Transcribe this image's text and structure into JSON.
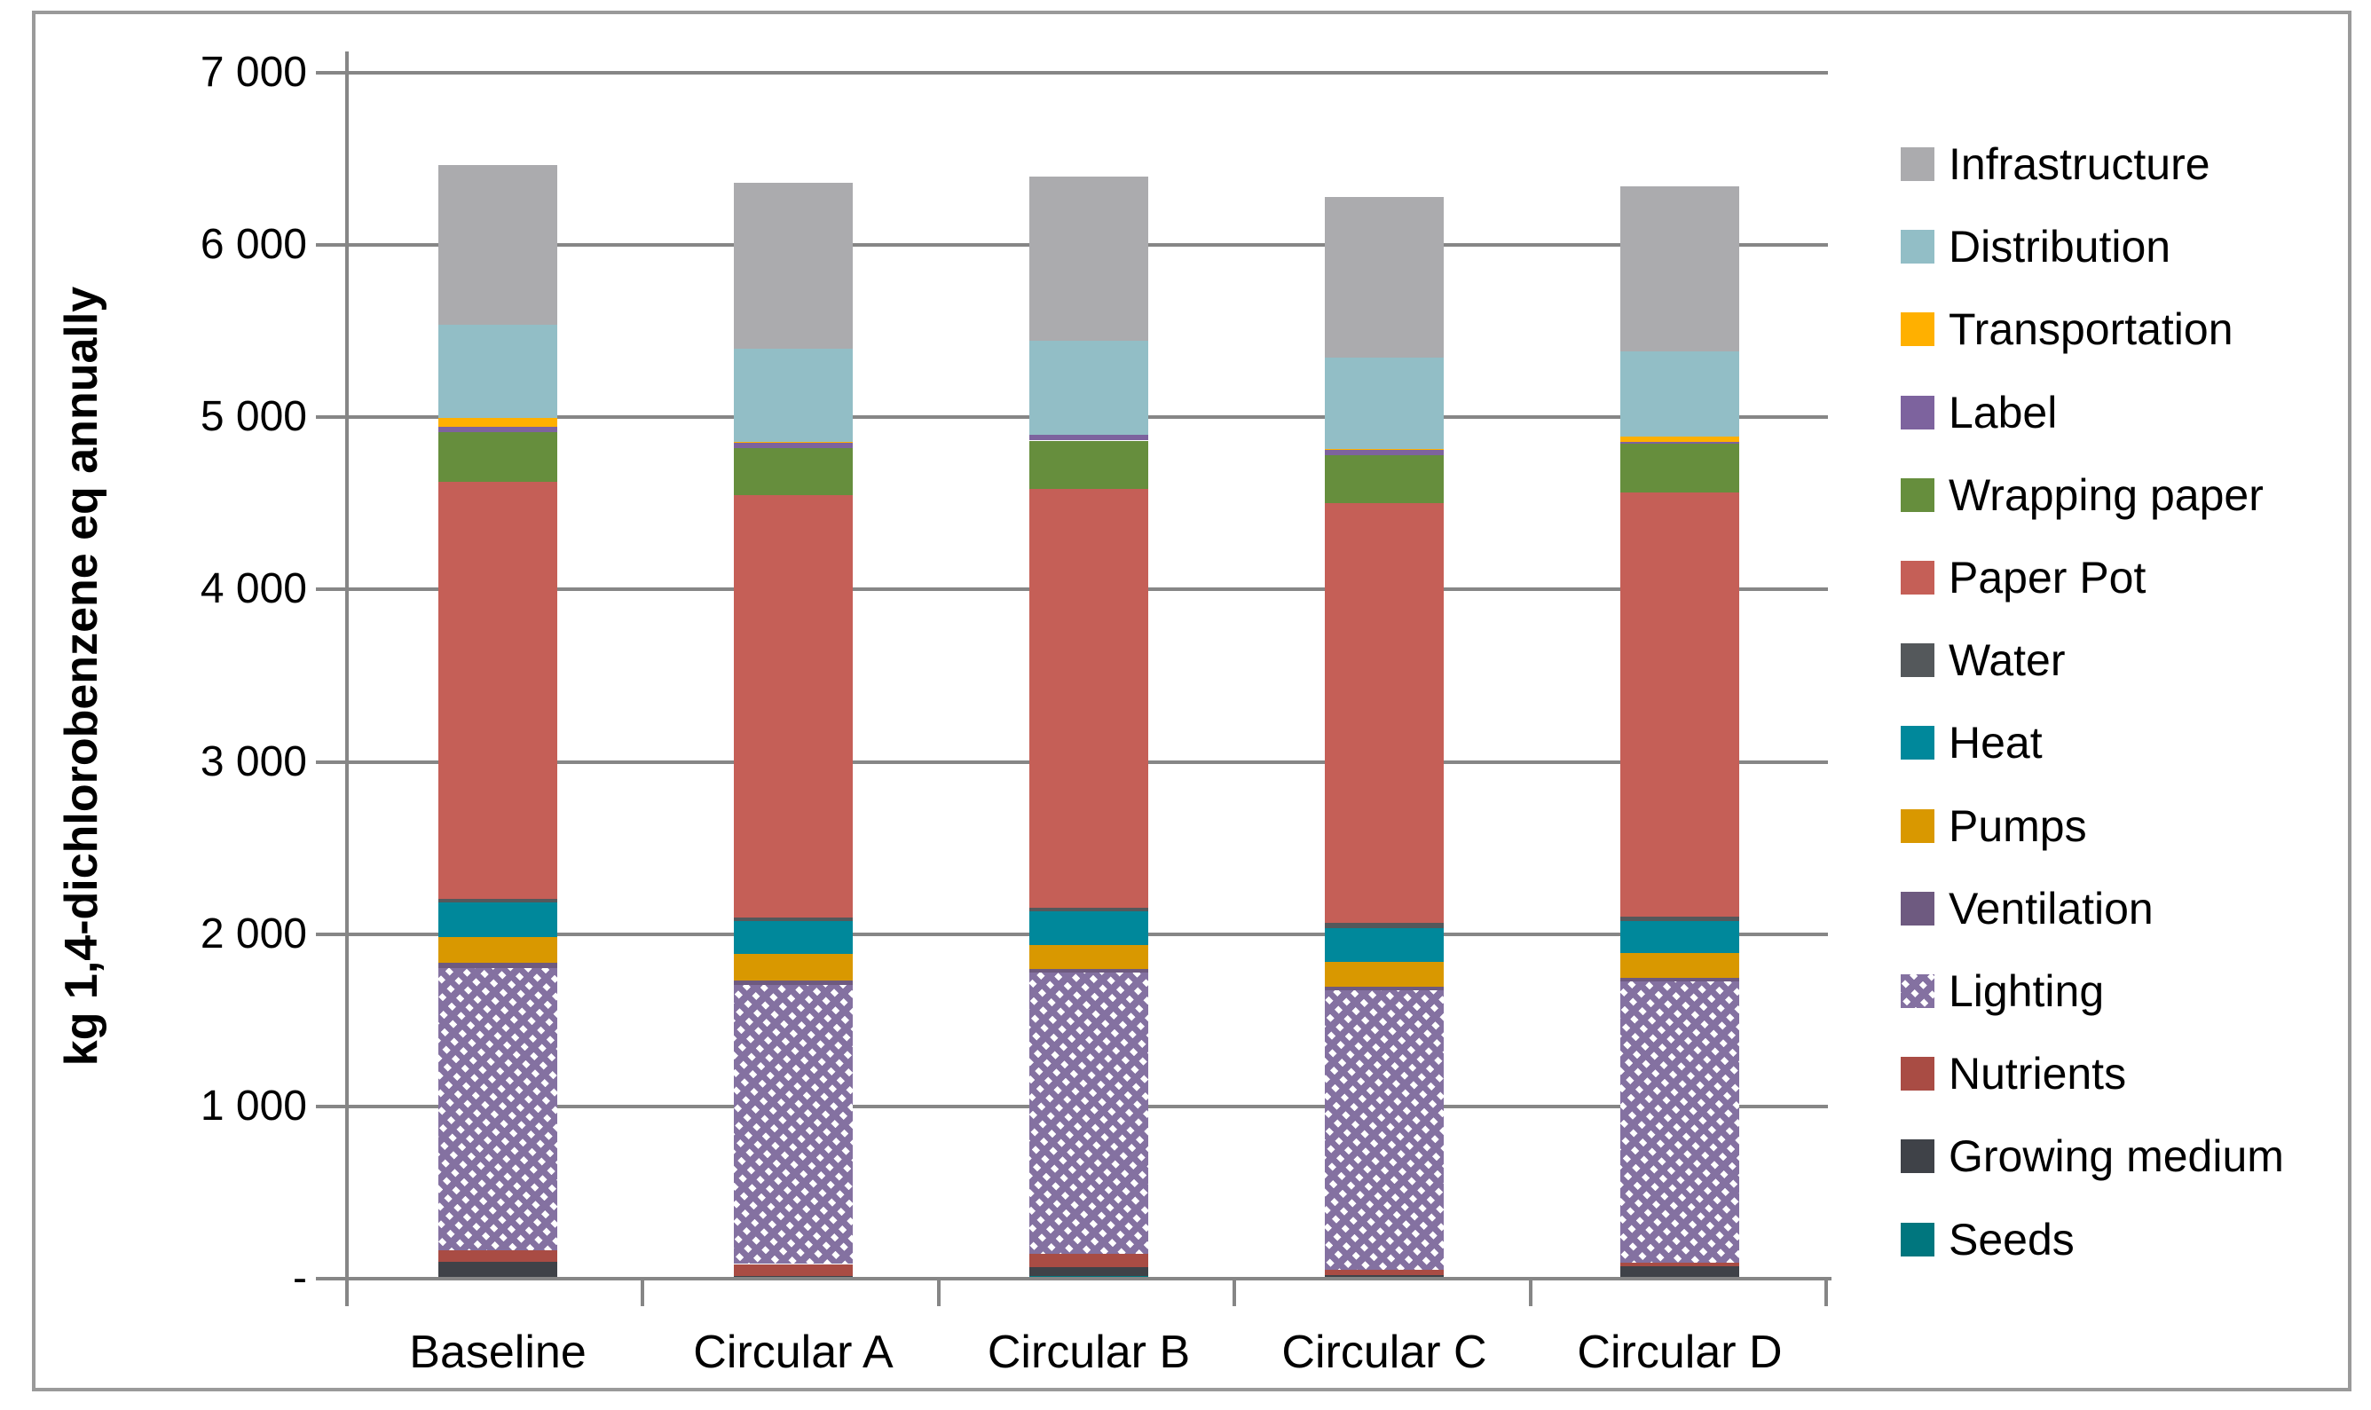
{
  "chart_data": {
    "type": "bar",
    "stacked": true,
    "orientation": "vertical",
    "ylabel": "kg 1,4-dichlorobenzene eq annually",
    "xlabel": "",
    "ylim": [
      0,
      7000
    ],
    "grid": true,
    "legend_position": "right",
    "y_tick_values": [
      7000,
      6000,
      5000,
      4000,
      3000,
      2000,
      1000,
      0
    ],
    "y_tick_labels": [
      "7 000",
      "6 000",
      "5 000",
      "4 000",
      "3 000",
      "2 000",
      "1 000",
      "-"
    ],
    "categories": [
      "Baseline",
      "Circular A",
      "Circular B",
      "Circular C",
      "Circular D"
    ],
    "series_bottom_to_top": [
      {
        "name": "Seeds",
        "color": "#00767e",
        "pattern": "solid",
        "values": [
          10,
          5,
          15,
          5,
          10
        ]
      },
      {
        "name": "Growing medium",
        "color": "#3f4248",
        "pattern": "solid",
        "values": [
          90,
          10,
          50,
          15,
          60
        ]
      },
      {
        "name": "Nutrients",
        "color": "#a94c44",
        "pattern": "solid",
        "values": [
          65,
          70,
          80,
          30,
          25
        ]
      },
      {
        "name": "Lighting",
        "color": "#8471a1",
        "pattern": "diagonal-hatch",
        "values": [
          1640,
          1620,
          1630,
          1625,
          1630
        ]
      },
      {
        "name": "Ventilation",
        "color": "#6e5a80",
        "pattern": "solid",
        "values": [
          30,
          25,
          25,
          20,
          20
        ]
      },
      {
        "name": "Pumps",
        "color": "#d99800",
        "pattern": "solid",
        "values": [
          150,
          155,
          135,
          145,
          145
        ]
      },
      {
        "name": "Heat",
        "color": "#00889b",
        "pattern": "solid",
        "values": [
          200,
          190,
          195,
          195,
          185
        ]
      },
      {
        "name": "Water",
        "color": "#54585b",
        "pattern": "solid",
        "values": [
          20,
          20,
          25,
          30,
          25
        ]
      },
      {
        "name": "Paper Pot",
        "color": "#c55f57",
        "pattern": "solid",
        "values": [
          2420,
          2455,
          2430,
          2435,
          2465
        ]
      },
      {
        "name": "Wrapping paper",
        "color": "#668e3d",
        "pattern": "solid",
        "values": [
          290,
          270,
          280,
          280,
          280
        ]
      },
      {
        "name": "Label",
        "color": "#7d639e",
        "pattern": "solid",
        "values": [
          30,
          30,
          35,
          30,
          10
        ]
      },
      {
        "name": "Transportation",
        "color": "#ffb000",
        "pattern": "solid",
        "values": [
          50,
          5,
          0,
          5,
          35
        ]
      },
      {
        "name": "Distribution",
        "color": "#92bec6",
        "pattern": "solid",
        "values": [
          540,
          545,
          545,
          530,
          495
        ]
      },
      {
        "name": "Infrastructure",
        "color": "#ababae",
        "pattern": "solid",
        "values": [
          930,
          960,
          950,
          935,
          955
        ]
      }
    ],
    "totals": [
      6465,
      6360,
      6395,
      6280,
      6340
    ],
    "legend_top_to_bottom": [
      "Infrastructure",
      "Distribution",
      "Transportation",
      "Label",
      "Wrapping paper",
      "Paper Pot",
      "Water",
      "Heat",
      "Pumps",
      "Ventilation",
      "Lighting",
      "Nutrients",
      "Growing medium",
      "Seeds"
    ],
    "colors": {
      "gridline": "#868686",
      "axis": "#868686",
      "border": "#9a9a9a",
      "background": "#ffffff"
    }
  }
}
